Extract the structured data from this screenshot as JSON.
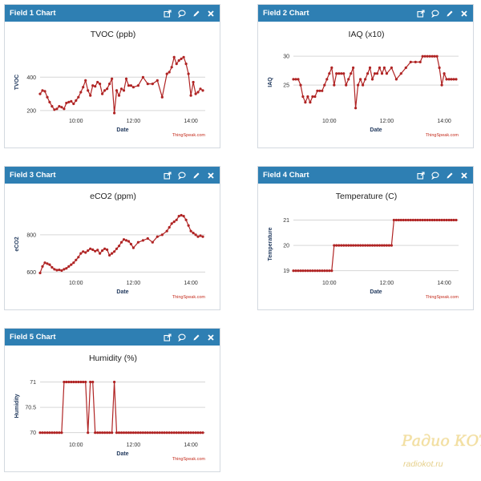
{
  "panels": [
    {
      "title": "Field 1 Chart"
    },
    {
      "title": "Field 2 Chart"
    },
    {
      "title": "Field 3 Chart"
    },
    {
      "title": "Field 4 Chart"
    },
    {
      "title": "Field 5 Chart"
    }
  ],
  "toolbar_icons": [
    "external-link-icon",
    "comment-icon",
    "pencil-icon",
    "close-icon"
  ],
  "watermark": {
    "top": "Радио КОТ",
    "bottom": "radiokot.ru"
  },
  "colors": {
    "header": "#2e7fb3",
    "series": "#b02424",
    "credit": "#c42b1c"
  },
  "chart_data": [
    {
      "type": "line",
      "title": "TVOC (ppb)",
      "xlabel": "Date",
      "ylabel": "TVOC",
      "credit": "ThingSpeak.com",
      "x_ticks": [
        "10:00",
        "12:00",
        "14:00"
      ],
      "y_ticks": [
        200,
        400
      ],
      "xlim": [
        "08:45",
        "14:30"
      ],
      "ylim": [
        180,
        560
      ],
      "series": [
        {
          "x": [
            "08:45",
            "08:50",
            "08:55",
            "09:00",
            "09:05",
            "09:10",
            "09:15",
            "09:20",
            "09:25",
            "09:30",
            "09:35",
            "09:40",
            "09:45",
            "09:50",
            "09:55",
            "10:00",
            "10:05",
            "10:10",
            "10:15",
            "10:20",
            "10:25",
            "10:30",
            "10:35",
            "10:40",
            "10:45",
            "10:50",
            "10:55",
            "11:00",
            "11:05",
            "11:10",
            "11:15",
            "11:20",
            "11:25",
            "11:30",
            "11:35",
            "11:40",
            "11:45",
            "11:50",
            "11:55",
            "12:00",
            "12:10",
            "12:20",
            "12:30",
            "12:40",
            "12:50",
            "13:00",
            "13:10",
            "13:15",
            "13:20",
            "13:25",
            "13:30",
            "13:35",
            "13:40",
            "13:45",
            "13:50",
            "13:55",
            "14:00",
            "14:05",
            "14:10",
            "14:15",
            "14:20",
            "14:25"
          ],
          "y": [
            300,
            320,
            315,
            280,
            250,
            225,
            205,
            210,
            225,
            220,
            210,
            245,
            250,
            255,
            240,
            260,
            280,
            310,
            340,
            380,
            320,
            290,
            350,
            345,
            370,
            360,
            300,
            320,
            330,
            360,
            390,
            185,
            320,
            290,
            330,
            320,
            390,
            350,
            350,
            340,
            350,
            400,
            360,
            360,
            380,
            280,
            420,
            430,
            460,
            520,
            480,
            500,
            510,
            520,
            480,
            420,
            290,
            370,
            300,
            310,
            330,
            320
          ]
        }
      ]
    },
    {
      "type": "line",
      "title": "IAQ (x10)",
      "xlabel": "Date",
      "ylabel": "IAQ",
      "credit": "ThingSpeak.com",
      "x_ticks": [
        "10:00",
        "12:00",
        "14:00"
      ],
      "y_ticks": [
        25,
        30
      ],
      "xlim": [
        "08:45",
        "14:30"
      ],
      "ylim": [
        20,
        31
      ],
      "series": [
        {
          "x": [
            "08:45",
            "08:50",
            "08:55",
            "09:00",
            "09:05",
            "09:10",
            "09:15",
            "09:20",
            "09:25",
            "09:30",
            "09:35",
            "09:40",
            "09:45",
            "09:50",
            "09:55",
            "10:00",
            "10:05",
            "10:10",
            "10:15",
            "10:20",
            "10:25",
            "10:30",
            "10:35",
            "10:40",
            "10:45",
            "10:50",
            "10:55",
            "11:00",
            "11:05",
            "11:10",
            "11:15",
            "11:20",
            "11:25",
            "11:30",
            "11:35",
            "11:40",
            "11:45",
            "11:50",
            "11:55",
            "12:00",
            "12:10",
            "12:20",
            "12:30",
            "12:40",
            "12:50",
            "13:00",
            "13:10",
            "13:15",
            "13:20",
            "13:25",
            "13:30",
            "13:35",
            "13:40",
            "13:45",
            "13:50",
            "13:55",
            "14:00",
            "14:05",
            "14:10",
            "14:15",
            "14:20",
            "14:25"
          ],
          "y": [
            26,
            26,
            26,
            25,
            23,
            22,
            23,
            22,
            23,
            23,
            24,
            24,
            24,
            25,
            26,
            27,
            28,
            25,
            27,
            27,
            27,
            27,
            25,
            26,
            27,
            28,
            21,
            25,
            26,
            25,
            26,
            27,
            28,
            26,
            27,
            27,
            28,
            27,
            28,
            27,
            28,
            26,
            27,
            28,
            29,
            29,
            29,
            30,
            30,
            30,
            30,
            30,
            30,
            30,
            28,
            25,
            27,
            26,
            26,
            26,
            26,
            26
          ]
        }
      ]
    },
    {
      "type": "line",
      "title": "eCO2 (ppm)",
      "xlabel": "Date",
      "ylabel": "eCO2",
      "credit": "ThingSpeak.com",
      "x_ticks": [
        "10:00",
        "12:00",
        "14:00"
      ],
      "y_ticks": [
        600,
        800
      ],
      "xlim": [
        "08:45",
        "14:30"
      ],
      "ylim": [
        580,
        920
      ],
      "series": [
        {
          "x": [
            "08:45",
            "08:50",
            "08:55",
            "09:00",
            "09:05",
            "09:10",
            "09:15",
            "09:20",
            "09:25",
            "09:30",
            "09:35",
            "09:40",
            "09:45",
            "09:50",
            "09:55",
            "10:00",
            "10:05",
            "10:10",
            "10:15",
            "10:20",
            "10:25",
            "10:30",
            "10:35",
            "10:40",
            "10:45",
            "10:50",
            "10:55",
            "11:00",
            "11:05",
            "11:10",
            "11:15",
            "11:20",
            "11:25",
            "11:30",
            "11:35",
            "11:40",
            "11:45",
            "11:50",
            "11:55",
            "12:00",
            "12:10",
            "12:20",
            "12:30",
            "12:40",
            "12:50",
            "13:00",
            "13:10",
            "13:15",
            "13:20",
            "13:25",
            "13:30",
            "13:35",
            "13:40",
            "13:45",
            "13:50",
            "13:55",
            "14:00",
            "14:05",
            "14:10",
            "14:15",
            "14:20",
            "14:25"
          ],
          "y": [
            595,
            630,
            650,
            645,
            640,
            625,
            615,
            610,
            612,
            608,
            615,
            620,
            630,
            640,
            650,
            665,
            680,
            700,
            710,
            705,
            715,
            725,
            720,
            712,
            718,
            700,
            715,
            725,
            720,
            690,
            700,
            710,
            725,
            740,
            760,
            775,
            770,
            765,
            750,
            730,
            760,
            770,
            780,
            760,
            790,
            800,
            820,
            840,
            860,
            870,
            880,
            900,
            905,
            900,
            880,
            850,
            820,
            810,
            800,
            790,
            795,
            790
          ]
        }
      ]
    },
    {
      "type": "line",
      "title": "Temperature (C)",
      "xlabel": "Date",
      "ylabel": "Temperature",
      "credit": "ThingSpeak.com",
      "x_ticks": [
        "10:00",
        "12:00",
        "14:00"
      ],
      "y_ticks": [
        19,
        20,
        21
      ],
      "xlim": [
        "08:45",
        "14:30"
      ],
      "ylim": [
        18.8,
        21.3
      ],
      "series": [
        {
          "x": [
            "08:45",
            "08:50",
            "08:55",
            "09:00",
            "09:05",
            "09:10",
            "09:15",
            "09:20",
            "09:25",
            "09:30",
            "09:35",
            "09:40",
            "09:45",
            "09:50",
            "09:55",
            "10:00",
            "10:05",
            "10:10",
            "10:15",
            "10:20",
            "10:25",
            "10:30",
            "10:35",
            "10:40",
            "10:45",
            "10:50",
            "10:55",
            "11:00",
            "11:05",
            "11:10",
            "11:15",
            "11:20",
            "11:25",
            "11:30",
            "11:35",
            "11:40",
            "11:45",
            "11:50",
            "11:55",
            "12:00",
            "12:05",
            "12:10",
            "12:15",
            "12:20",
            "12:25",
            "12:30",
            "12:35",
            "12:40",
            "12:45",
            "12:50",
            "12:55",
            "13:00",
            "13:05",
            "13:10",
            "13:15",
            "13:20",
            "13:25",
            "13:30",
            "13:35",
            "13:40",
            "13:45",
            "13:50",
            "13:55",
            "14:00",
            "14:05",
            "14:10",
            "14:15",
            "14:20",
            "14:25"
          ],
          "y": [
            19,
            19,
            19,
            19,
            19,
            19,
            19,
            19,
            19,
            19,
            19,
            19,
            19,
            19,
            19,
            19,
            19,
            20,
            20,
            20,
            20,
            20,
            20,
            20,
            20,
            20,
            20,
            20,
            20,
            20,
            20,
            20,
            20,
            20,
            20,
            20,
            20,
            20,
            20,
            20,
            20,
            20,
            21,
            21,
            21,
            21,
            21,
            21,
            21,
            21,
            21,
            21,
            21,
            21,
            21,
            21,
            21,
            21,
            21,
            21,
            21,
            21,
            21,
            21,
            21,
            21,
            21,
            21,
            21
          ]
        }
      ]
    },
    {
      "type": "line",
      "title": "Humidity (%)",
      "xlabel": "Date",
      "ylabel": "Humidity",
      "credit": "ThingSpeak.com",
      "x_ticks": [
        "10:00",
        "12:00",
        "14:00"
      ],
      "y_ticks": [
        70,
        70.5,
        71
      ],
      "xlim": [
        "08:45",
        "14:30"
      ],
      "ylim": [
        69.9,
        71.15
      ],
      "series": [
        {
          "x": [
            "08:45",
            "08:50",
            "08:55",
            "09:00",
            "09:05",
            "09:10",
            "09:15",
            "09:20",
            "09:25",
            "09:30",
            "09:35",
            "09:40",
            "09:45",
            "09:50",
            "09:55",
            "10:00",
            "10:05",
            "10:10",
            "10:15",
            "10:20",
            "10:25",
            "10:30",
            "10:35",
            "10:40",
            "10:45",
            "10:50",
            "10:55",
            "11:00",
            "11:05",
            "11:10",
            "11:15",
            "11:20",
            "11:25",
            "11:30",
            "11:35",
            "11:40",
            "11:45",
            "11:50",
            "11:55",
            "12:00",
            "12:05",
            "12:10",
            "12:15",
            "12:20",
            "12:25",
            "12:30",
            "12:35",
            "12:40",
            "12:45",
            "12:50",
            "12:55",
            "13:00",
            "13:05",
            "13:10",
            "13:15",
            "13:20",
            "13:25",
            "13:30",
            "13:35",
            "13:40",
            "13:45",
            "13:50",
            "13:55",
            "14:00",
            "14:05",
            "14:10",
            "14:15",
            "14:20",
            "14:25"
          ],
          "y": [
            70,
            70,
            70,
            70,
            70,
            70,
            70,
            70,
            70,
            70,
            71,
            71,
            71,
            71,
            71,
            71,
            71,
            71,
            71,
            71,
            70,
            71,
            71,
            70,
            70,
            70,
            70,
            70,
            70,
            70,
            70,
            71,
            70,
            70,
            70,
            70,
            70,
            70,
            70,
            70,
            70,
            70,
            70,
            70,
            70,
            70,
            70,
            70,
            70,
            70,
            70,
            70,
            70,
            70,
            70,
            70,
            70,
            70,
            70,
            70,
            70,
            70,
            70,
            70,
            70,
            70,
            70,
            70,
            70
          ]
        }
      ]
    }
  ]
}
